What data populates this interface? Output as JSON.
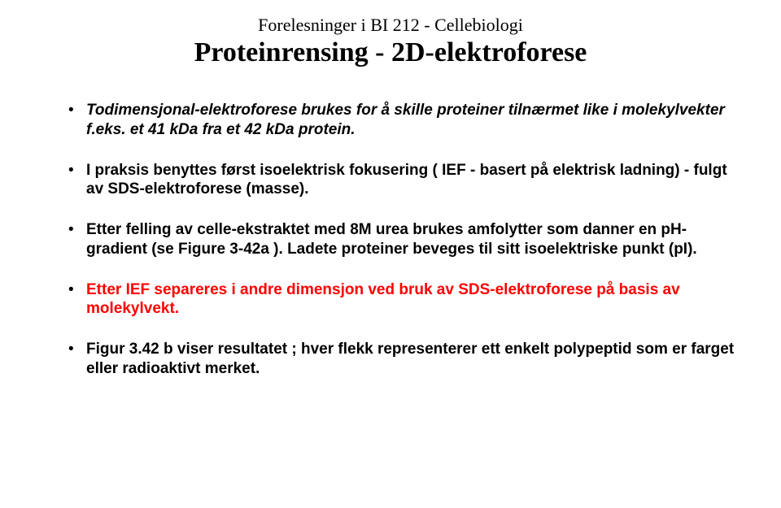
{
  "pretitle": "Forelesninger i BI 212 - Cellebiologi",
  "title": "Proteinrensing - 2D-elektroforese",
  "bullets": [
    {
      "html": "<span class='bold-italic'>Todimensjonal-elektroforese brukes for å skille proteiner tilnærmet like i molekylvekter f.eks. et 41 kDa fra et 42 kDa protein.</span>"
    },
    {
      "html": "<span class='bold'>I praksis benyttes først isoelektrisk fokusering ( IEF - basert på elektrisk ladning) - fulgt av SDS-elektroforese (masse).</span>"
    },
    {
      "html": "<span class='bold'>Etter felling av celle-ekstraktet med 8M urea brukes amfolytter som danner en pH-gradient (se Figure 3-42a ). Ladete proteiner beveges til sitt isoelektriske punkt (pI).</span>"
    },
    {
      "html": "<span class='bold red'>Etter IEF separeres i andre dimensjon ved bruk av SDS-elektroforese på basis av molekylvekt.</span>"
    },
    {
      "html": "<span class='bold'>Figur 3.42 b viser resultatet ; hver flekk representerer ett enkelt polypeptid som er farget eller radioaktivt merket.</span>"
    }
  ]
}
